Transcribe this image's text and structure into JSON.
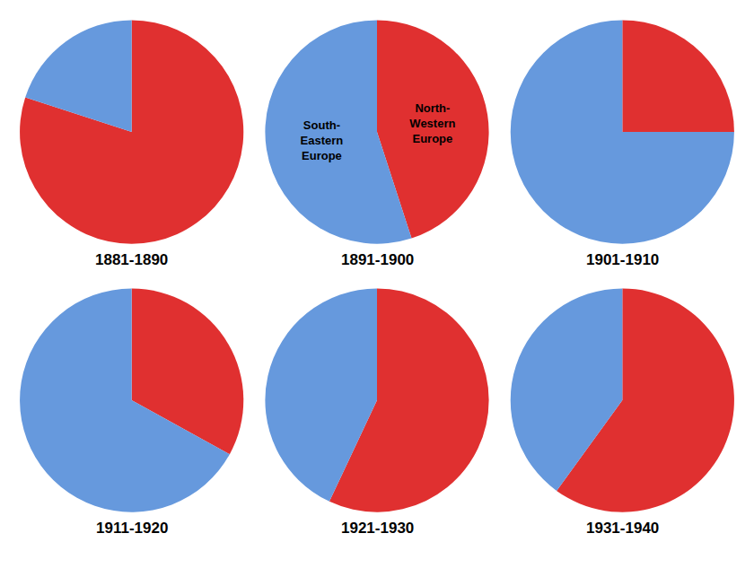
{
  "chart_data": [
    {
      "type": "pie",
      "title": "1881-1890",
      "values": [
        80,
        20
      ],
      "colors": [
        "#E03030",
        "#6699DD"
      ]
    },
    {
      "type": "pie",
      "title": "1891-1900",
      "values": [
        45,
        55
      ],
      "colors": [
        "#E03030",
        "#6699DD"
      ],
      "annotations": [
        "North-\nWestern\nEurope",
        "South-\nEastern\nEurope"
      ]
    },
    {
      "type": "pie",
      "title": "1901-1910",
      "values": [
        25,
        75
      ],
      "colors": [
        "#E03030",
        "#6699DD"
      ]
    },
    {
      "type": "pie",
      "title": "1911-1920",
      "values": [
        33,
        67
      ],
      "colors": [
        "#E03030",
        "#6699DD"
      ]
    },
    {
      "type": "pie",
      "title": "1921-1930",
      "values": [
        57,
        43
      ],
      "colors": [
        "#E03030",
        "#6699DD"
      ]
    },
    {
      "type": "pie",
      "title": "1931-1940",
      "values": [
        60,
        40
      ],
      "colors": [
        "#E03030",
        "#6699DD"
      ]
    }
  ]
}
